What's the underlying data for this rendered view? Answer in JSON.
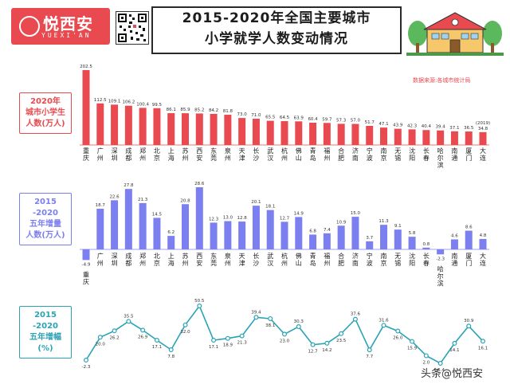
{
  "header": {
    "logo_text": "悦西安",
    "logo_sub": "YUEXI'AN",
    "title_line1": "2015-2020年全国主要城市",
    "title_line2": "小学就学人数变动情况",
    "source": "数据来源:各城市统计局",
    "watermark": "头条@悦西安"
  },
  "colors": {
    "red": "#e84a4f",
    "blue": "#7b7ff0",
    "teal": "#2aa3b5",
    "red_label_border": "#e84a4f",
    "blue_label_border": "#7b7ff0",
    "teal_label_border": "#2aa3b5"
  },
  "chart_data": [
    {
      "type": "bar",
      "label_lines": [
        "2020年",
        "城市小学生",
        "人数(万人)"
      ],
      "categories": [
        "重庆",
        "广州",
        "深圳",
        "成都",
        "郑州",
        "北京",
        "上海",
        "苏州",
        "西安",
        "东莞",
        "泉州",
        "天津",
        "长沙",
        "武汉",
        "杭州",
        "佛山",
        "青岛",
        "福州",
        "合肥",
        "济南",
        "宁波",
        "南京",
        "无锡",
        "沈阳",
        "长春",
        "哈尔滨",
        "南通",
        "厦门",
        "大连"
      ],
      "values": [
        202.5,
        112.5,
        109.1,
        106.2,
        100.4,
        99.5,
        86.1,
        85.9,
        85.2,
        84.2,
        81.8,
        73.0,
        71.0,
        65.5,
        64.5,
        63.9,
        60.4,
        59.7,
        57.3,
        57.0,
        51.7,
        47.1,
        43.9,
        42.3,
        40.4,
        39.4,
        37.1,
        36.5,
        34.8
      ],
      "annotation": "(2019)"
    },
    {
      "type": "bar",
      "label_lines": [
        "2015",
        "-2020",
        "五年增量",
        "人数(万人)"
      ],
      "categories": [
        "重庆",
        "广州",
        "深圳",
        "成都",
        "郑州",
        "北京",
        "上海",
        "苏州",
        "西安",
        "东莞",
        "泉州",
        "天津",
        "长沙",
        "武汉",
        "杭州",
        "佛山",
        "青岛",
        "福州",
        "合肥",
        "济南",
        "宁波",
        "南京",
        "无锡",
        "沈阳",
        "长春",
        "哈尔滨",
        "南通",
        "厦门",
        "大连"
      ],
      "values": [
        -4.9,
        18.7,
        22.6,
        27.8,
        21.3,
        14.5,
        6.2,
        20.8,
        28.6,
        12.3,
        13.0,
        12.8,
        20.1,
        18.1,
        12.7,
        14.9,
        6.8,
        7.4,
        10.9,
        15.0,
        3.7,
        11.3,
        9.1,
        5.8,
        0.8,
        -2.3,
        4.6,
        8.6,
        4.8
      ]
    },
    {
      "type": "line",
      "label_lines": [
        "2015",
        "-2020",
        "五年增幅",
        "(%)"
      ],
      "categories": [
        "重庆",
        "广州",
        "深圳",
        "成都",
        "郑州",
        "北京",
        "上海",
        "苏州",
        "西安",
        "东莞",
        "泉州",
        "天津",
        "长沙",
        "武汉",
        "杭州",
        "佛山",
        "青岛",
        "福州",
        "合肥",
        "济南",
        "宁波",
        "南京",
        "无锡",
        "沈阳",
        "长春",
        "哈尔滨",
        "南通",
        "厦门",
        "大连"
      ],
      "values": [
        -2.3,
        20.0,
        26.2,
        35.5,
        26.9,
        17.1,
        7.8,
        32.0,
        50.5,
        17.1,
        18.9,
        21.3,
        39.4,
        38.1,
        23.0,
        30.3,
        12.7,
        14.2,
        23.5,
        37.6,
        7.7,
        31.6,
        26.0,
        15.9,
        2.0,
        -5.4,
        14.1,
        30.9,
        16.1
      ]
    }
  ]
}
